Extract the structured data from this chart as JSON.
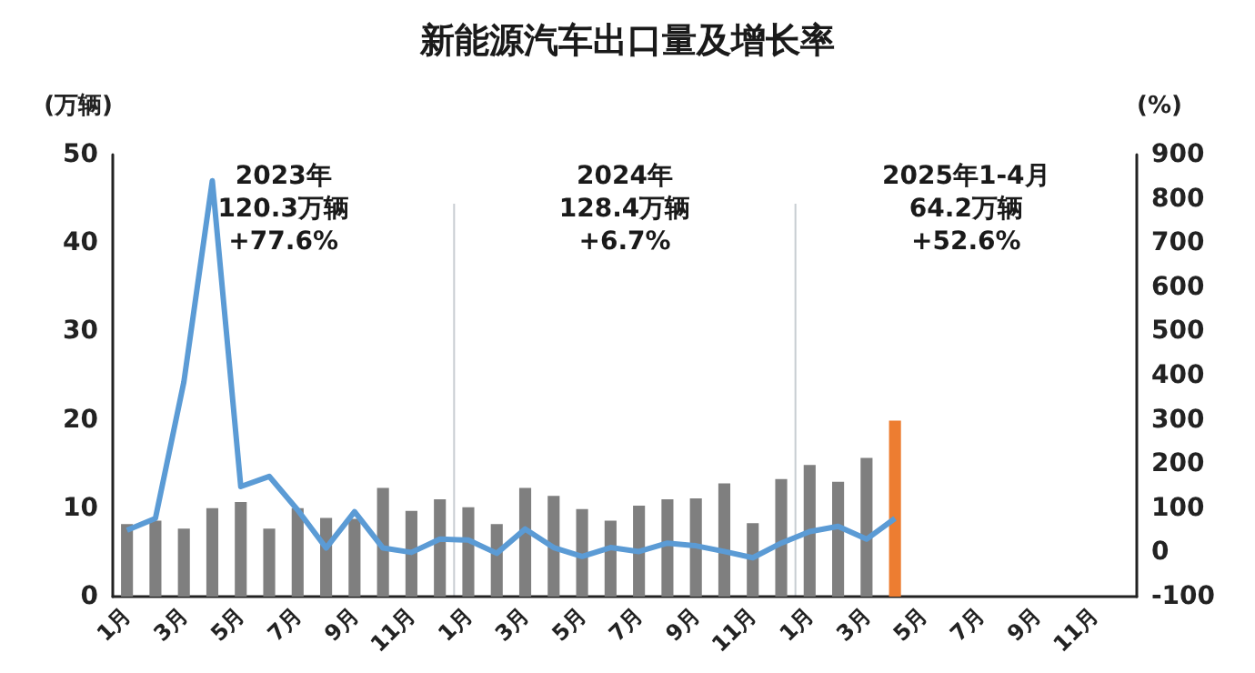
{
  "chart_data": {
    "type": "bar",
    "title": "新能源汽车出口量及增长率",
    "ylabel": "(万辆)",
    "y2label": "(%)",
    "categories": [
      "1月",
      null,
      "3月",
      null,
      "5月",
      null,
      "7月",
      null,
      "9月",
      null,
      "11月",
      null,
      "1月",
      null,
      "3月",
      null,
      "5月",
      null,
      "7月",
      null,
      "9月",
      null,
      "11月",
      null,
      "1月",
      null,
      "3月",
      null,
      "5月",
      null,
      "7月",
      null,
      "9月",
      null,
      "11月",
      null
    ],
    "series": [
      {
        "values": [
          8.2,
          8.6,
          7.7,
          10.0,
          10.7,
          7.7,
          10.0,
          8.9,
          8.8,
          12.3,
          9.7,
          11.0,
          10.1,
          8.2,
          12.3,
          11.4,
          9.9,
          8.6,
          10.3,
          11.0,
          11.1,
          12.8,
          8.3,
          13.3,
          14.9,
          13.0,
          15.7,
          19.9,
          null,
          null,
          null,
          null,
          null,
          null,
          null,
          null
        ],
        "colors": [
          "#7f7f7f",
          "#7f7f7f",
          "#7f7f7f",
          "#7f7f7f",
          "#7f7f7f",
          "#7f7f7f",
          "#7f7f7f",
          "#7f7f7f",
          "#7f7f7f",
          "#7f7f7f",
          "#7f7f7f",
          "#7f7f7f",
          "#7f7f7f",
          "#7f7f7f",
          "#7f7f7f",
          "#7f7f7f",
          "#7f7f7f",
          "#7f7f7f",
          "#7f7f7f",
          "#7f7f7f",
          "#7f7f7f",
          "#7f7f7f",
          "#7f7f7f",
          "#7f7f7f",
          "#7f7f7f",
          "#7f7f7f",
          "#7f7f7f",
          "#ed7d31",
          "#7f7f7f",
          "#7f7f7f",
          "#7f7f7f",
          "#7f7f7f",
          "#7f7f7f",
          "#7f7f7f",
          "#7f7f7f",
          "#7f7f7f"
        ]
      },
      {
        "type": "line",
        "axis": "y2",
        "color": "#5b9bd5",
        "values": [
          50,
          77,
          386,
          841,
          149,
          172,
          96,
          10,
          92,
          10,
          0,
          30,
          28,
          -2,
          53,
          11,
          -9,
          11,
          2,
          21,
          15,
          2,
          -12,
          21,
          47,
          59,
          30,
          77,
          null,
          null,
          null,
          null,
          null,
          null,
          null,
          null
        ]
      }
    ],
    "ylim": [
      0,
      50
    ],
    "yticks": [
      0,
      10,
      20,
      30,
      40,
      50
    ],
    "y2lim": [
      -100,
      900
    ],
    "y2ticks": [
      -100,
      0,
      100,
      200,
      300,
      400,
      500,
      600,
      700,
      800,
      900
    ],
    "annotations": [
      "2023年\n120.3万辆\n+77.6%",
      "2024年\n128.4万辆\n+6.7%",
      "2025年1-4月\n64.2万辆\n+52.6%"
    ],
    "grid": false,
    "marker": "none",
    "line_style": "solid"
  }
}
